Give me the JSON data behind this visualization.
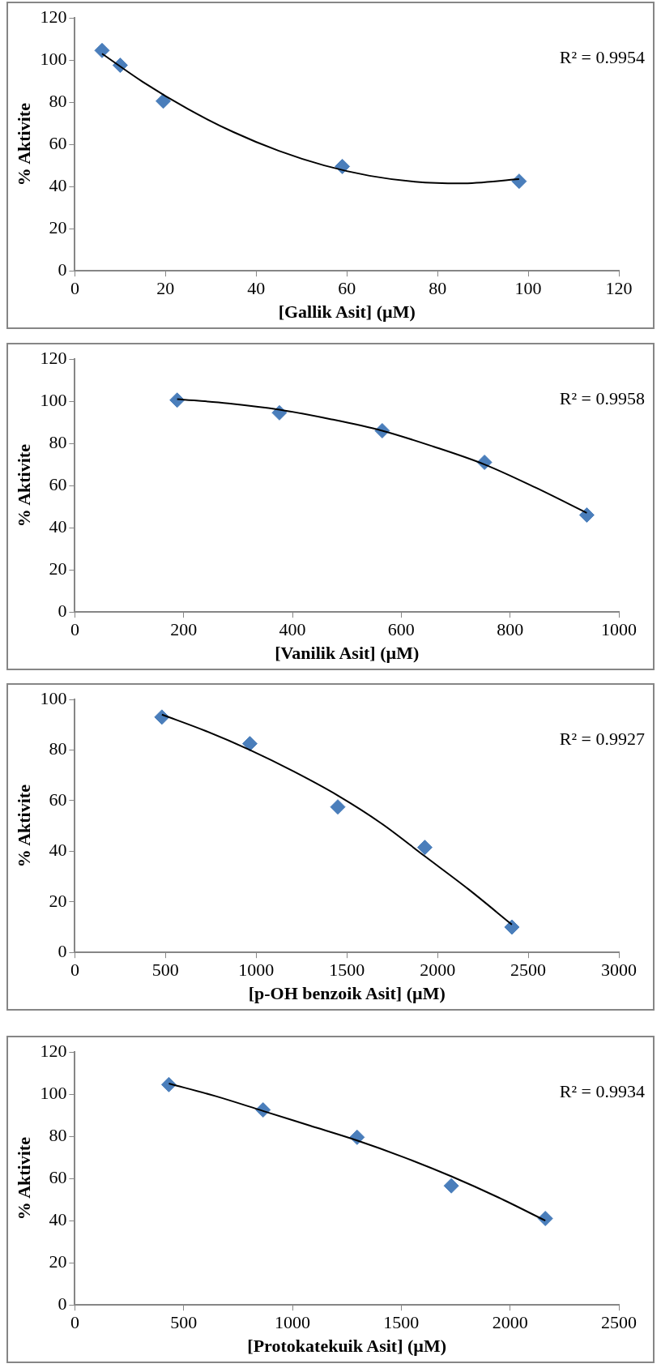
{
  "chart_data": [
    {
      "type": "scatter",
      "xlabel": "[Gallik Asit] (µM)",
      "ylabel": "% Aktivite",
      "annotations": [
        "R² = 0.9954"
      ],
      "xlim": [
        0,
        120
      ],
      "xticks": [
        0,
        20,
        40,
        60,
        80,
        100,
        120
      ],
      "ylim": [
        0,
        120
      ],
      "yticks": [
        0,
        20,
        40,
        60,
        80,
        100,
        120
      ],
      "grid": false,
      "legend": false,
      "marker": "diamond",
      "series": [
        {
          "type": "scatter",
          "color": "#4a7ebb",
          "x": [
            6,
            10,
            19.5,
            59,
            98
          ],
          "values": [
            104.5,
            97.5,
            80.5,
            49.5,
            42.5
          ]
        },
        {
          "type": "line",
          "color": "#000000",
          "marker": "none",
          "x": [
            6,
            15,
            25,
            35,
            45,
            55,
            65,
            75,
            85,
            98
          ],
          "values": [
            103,
            89.6,
            76.7,
            65.8,
            56.9,
            50,
            45.1,
            42.3,
            41.5,
            43.5
          ]
        }
      ]
    },
    {
      "type": "scatter",
      "xlabel": "[Vanilik Asit] (µM)",
      "ylabel": "% Aktivite",
      "annotations": [
        "R² = 0.9958"
      ],
      "xlim": [
        0,
        1000
      ],
      "xticks": [
        0,
        200,
        400,
        600,
        800,
        1000
      ],
      "ylim": [
        0,
        120
      ],
      "yticks": [
        0,
        20,
        40,
        60,
        80,
        100,
        120
      ],
      "grid": false,
      "legend": false,
      "marker": "diamond",
      "series": [
        {
          "type": "scatter",
          "color": "#4a7ebb",
          "x": [
            188,
            376,
            565,
            753,
            941
          ],
          "values": [
            100.5,
            94.5,
            86,
            71,
            46
          ]
        },
        {
          "type": "line",
          "color": "#000000",
          "marker": "none",
          "x": [
            188,
            282,
            376,
            470,
            565,
            659,
            753,
            847,
            941
          ],
          "values": [
            101,
            99,
            96,
            91.5,
            86,
            78.5,
            70,
            59,
            47
          ]
        }
      ]
    },
    {
      "type": "scatter",
      "xlabel": "[p-OH benzoik Asit] (µM)",
      "ylabel": "% Aktivite",
      "annotations": [
        "R² = 0.9927"
      ],
      "xlim": [
        0,
        3000
      ],
      "xticks": [
        0,
        500,
        1000,
        1500,
        2000,
        2500,
        3000
      ],
      "ylim": [
        0,
        100
      ],
      "yticks": [
        0,
        20,
        40,
        60,
        80,
        100
      ],
      "grid": false,
      "legend": false,
      "marker": "diamond",
      "series": [
        {
          "type": "scatter",
          "color": "#4a7ebb",
          "x": [
            480,
            965,
            1450,
            1930,
            2410
          ],
          "values": [
            93,
            82.5,
            57.5,
            41.5,
            10
          ]
        },
        {
          "type": "line",
          "color": "#000000",
          "marker": "none",
          "x": [
            480,
            722,
            965,
            1207,
            1450,
            1690,
            1930,
            2170,
            2410
          ],
          "values": [
            94,
            87.5,
            80,
            71.5,
            62,
            51,
            38,
            25,
            11
          ]
        }
      ]
    },
    {
      "type": "scatter",
      "xlabel": "[Protokatekuik Asit] (µM)",
      "ylabel": "% Aktivite",
      "annotations": [
        "R² = 0.9934"
      ],
      "xlim": [
        0,
        2500
      ],
      "xticks": [
        0,
        500,
        1000,
        1500,
        2000,
        2500
      ],
      "ylim": [
        0,
        120
      ],
      "yticks": [
        0,
        20,
        40,
        60,
        80,
        100,
        120
      ],
      "grid": false,
      "legend": false,
      "marker": "diamond",
      "series": [
        {
          "type": "scatter",
          "color": "#4a7ebb",
          "x": [
            432,
            865,
            1297,
            1730,
            2162
          ],
          "values": [
            104.5,
            92.5,
            79.5,
            56.5,
            41
          ]
        },
        {
          "type": "line",
          "color": "#000000",
          "marker": "none",
          "x": [
            432,
            648,
            865,
            1081,
            1297,
            1513,
            1730,
            1946,
            2162
          ],
          "values": [
            105,
            99,
            92,
            85,
            78,
            70,
            61,
            51,
            40
          ]
        }
      ]
    }
  ]
}
